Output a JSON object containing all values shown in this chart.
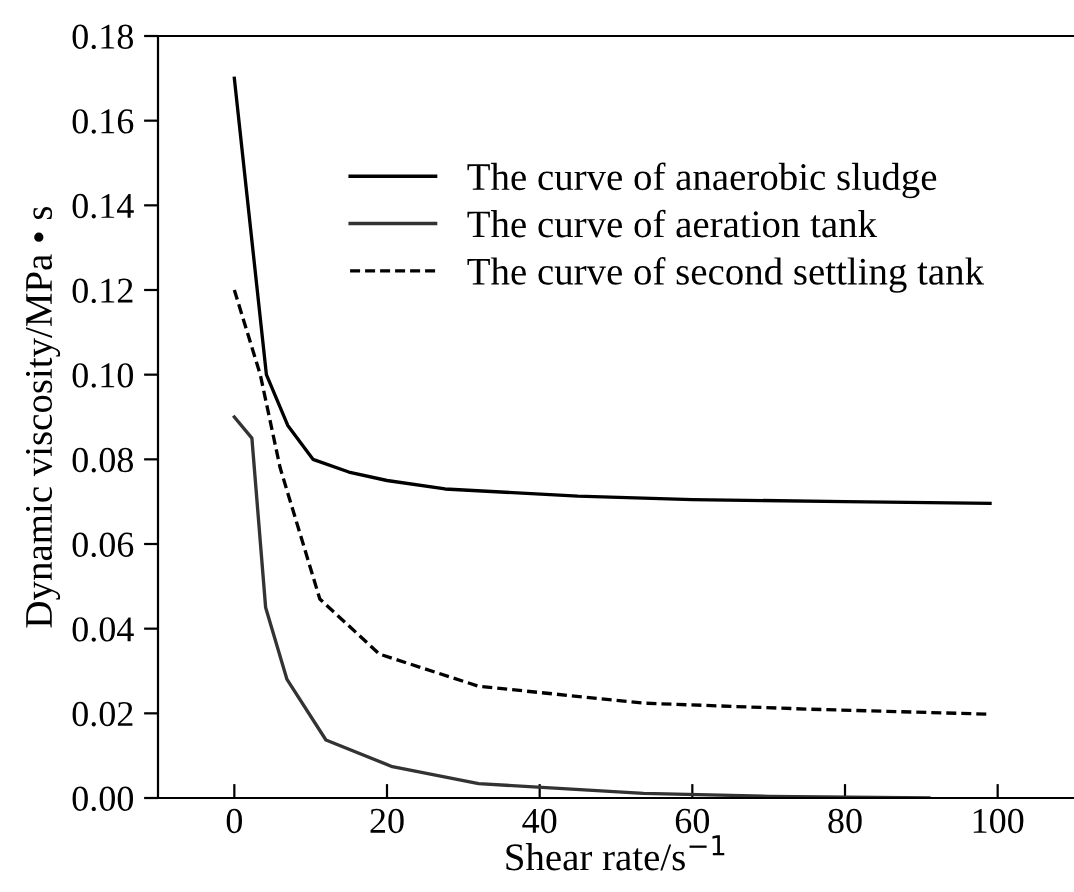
{
  "chart_data": {
    "type": "line",
    "xlabel": "Shear rate/s$^{−1}$",
    "ylabel": "Dynamic viscosity/MPa • s",
    "xlim": [
      -10,
      110
    ],
    "xticks": [
      0,
      20,
      40,
      60,
      80,
      100
    ],
    "ylim": [
      0,
      0.18
    ],
    "yticks": [
      {
        "value": 0,
        "label": "0.00"
      },
      {
        "value": 0.02,
        "label": "0.02"
      },
      {
        "value": 0.04,
        "label": "0.04"
      },
      {
        "value": 0.06,
        "label": "0.06"
      },
      {
        "value": 0.08,
        "label": "0.08"
      },
      {
        "value": 0.1,
        "label": "0.10"
      },
      {
        "value": 0.12,
        "label": "0.12"
      },
      {
        "value": 0.14,
        "label": "0.14"
      },
      {
        "value": 0.16,
        "label": "0.16"
      },
      {
        "value": 0.18,
        "label": "0.18"
      }
    ],
    "grid": false,
    "legend": "top right",
    "marker": "none",
    "series": [
      {
        "name": "The curve of anaerobic sludge",
        "color": "#000000",
        "line_style": "solid",
        "x": [
          0,
          4.2,
          7,
          10.3,
          15,
          20,
          27.6,
          45,
          60,
          80,
          99
        ],
        "values": [
          0.17,
          0.1,
          0.088,
          0.08,
          0.077,
          0.075,
          0.073,
          0.0713,
          0.0705,
          0.07,
          0.0696
        ]
      },
      {
        "name": "The curve of aeration tank",
        "color": "#333333",
        "line_style": "solid",
        "x": [
          0,
          2.3,
          4.1,
          6.9,
          12,
          20.7,
          32,
          53.6,
          70,
          91
        ],
        "values": [
          0.09,
          0.085,
          0.045,
          0.028,
          0.0137,
          0.0074,
          0.0034,
          0.0011,
          0.0004,
          0.0
        ]
      },
      {
        "name": "The curve of second settling tank",
        "color": "#000000",
        "line_style": "dashed",
        "x": [
          0,
          3.4,
          6,
          11.2,
          19,
          32,
          53.6,
          75,
          99
        ],
        "values": [
          0.12,
          0.1,
          0.078,
          0.047,
          0.034,
          0.0264,
          0.0224,
          0.021,
          0.0198
        ]
      }
    ]
  }
}
